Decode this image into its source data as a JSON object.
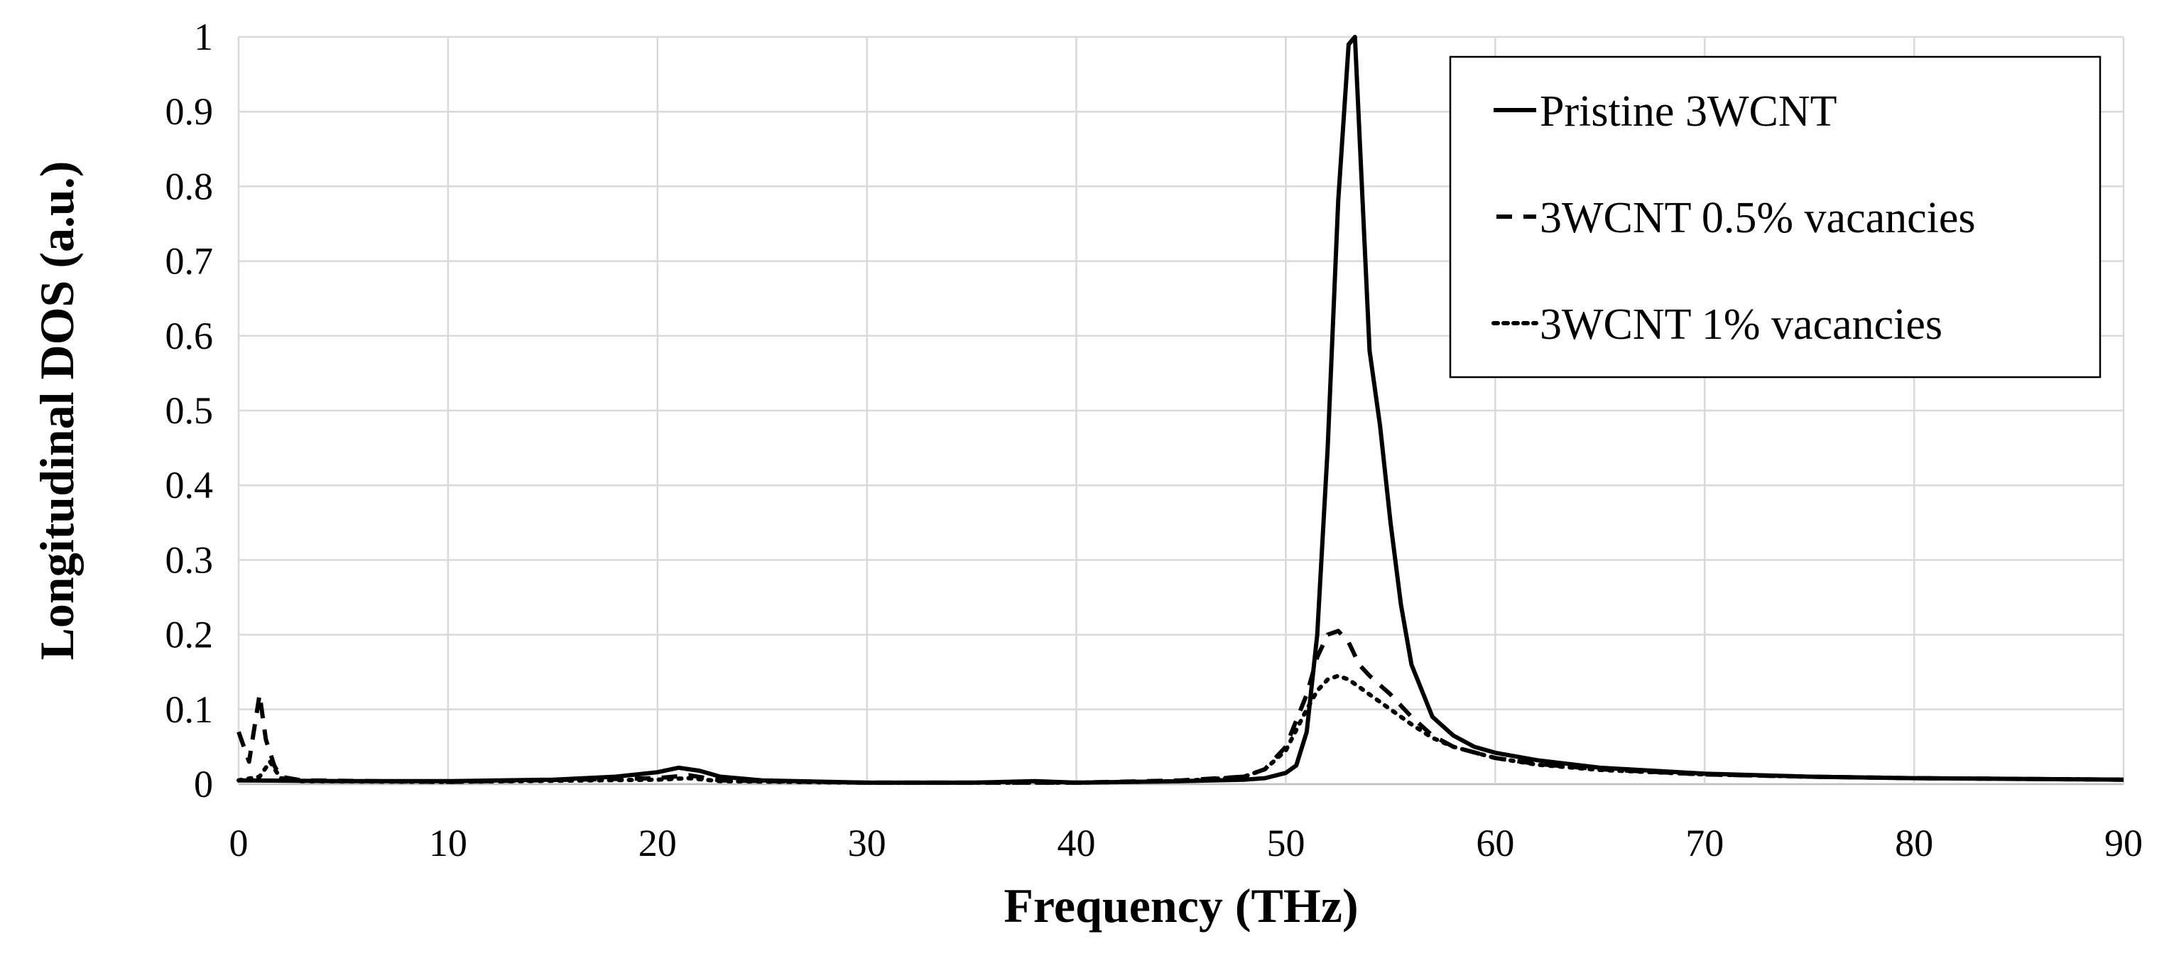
{
  "chart_data": {
    "type": "line",
    "title": "",
    "xlabel": "Frequency (THz)",
    "ylabel": "Longitudinal DOS (a.u.)",
    "xlim": [
      0,
      90
    ],
    "ylim": [
      0,
      1
    ],
    "xticks": [
      "0",
      "10",
      "20",
      "30",
      "40",
      "50",
      "60",
      "70",
      "80",
      "90"
    ],
    "yticks": [
      "0",
      "0.1",
      "0.2",
      "0.3",
      "0.4",
      "0.5",
      "0.6",
      "0.7",
      "0.8",
      "0.9",
      "1"
    ],
    "grid": true,
    "legend_position": "top-right",
    "series": [
      {
        "name": "Pristine 3WCNT",
        "style": "solid",
        "color": "#000000",
        "points": [
          [
            0,
            0.005
          ],
          [
            5,
            0.004
          ],
          [
            10,
            0.004
          ],
          [
            15,
            0.006
          ],
          [
            18,
            0.01
          ],
          [
            20,
            0.016
          ],
          [
            21,
            0.022
          ],
          [
            22,
            0.018
          ],
          [
            23,
            0.01
          ],
          [
            25,
            0.005
          ],
          [
            30,
            0.002
          ],
          [
            35,
            0.002
          ],
          [
            38,
            0.004
          ],
          [
            40,
            0.002
          ],
          [
            45,
            0.004
          ],
          [
            48,
            0.006
          ],
          [
            49,
            0.008
          ],
          [
            50,
            0.015
          ],
          [
            50.5,
            0.025
          ],
          [
            51,
            0.07
          ],
          [
            51.5,
            0.2
          ],
          [
            52,
            0.45
          ],
          [
            52.5,
            0.78
          ],
          [
            53,
            0.99
          ],
          [
            53.3,
            1.0
          ],
          [
            53.6,
            0.82
          ],
          [
            54,
            0.58
          ],
          [
            54.5,
            0.48
          ],
          [
            55,
            0.35
          ],
          [
            55.5,
            0.24
          ],
          [
            56,
            0.16
          ],
          [
            57,
            0.09
          ],
          [
            58,
            0.065
          ],
          [
            59,
            0.05
          ],
          [
            60,
            0.042
          ],
          [
            62,
            0.032
          ],
          [
            65,
            0.022
          ],
          [
            70,
            0.014
          ],
          [
            75,
            0.01
          ],
          [
            80,
            0.008
          ],
          [
            85,
            0.007
          ],
          [
            90,
            0.006
          ]
        ]
      },
      {
        "name": "3WCNT 0.5% vacancies",
        "style": "dashed",
        "color": "#000000",
        "points": [
          [
            0,
            0.07
          ],
          [
            0.5,
            0.03
          ],
          [
            1,
            0.12
          ],
          [
            1.3,
            0.06
          ],
          [
            1.7,
            0.025
          ],
          [
            2,
            0.01
          ],
          [
            3,
            0.005
          ],
          [
            10,
            0.003
          ],
          [
            20,
            0.008
          ],
          [
            21.5,
            0.012
          ],
          [
            23,
            0.005
          ],
          [
            30,
            0.002
          ],
          [
            40,
            0.002
          ],
          [
            45,
            0.005
          ],
          [
            48,
            0.01
          ],
          [
            49,
            0.02
          ],
          [
            50,
            0.05
          ],
          [
            51,
            0.12
          ],
          [
            51.5,
            0.17
          ],
          [
            52,
            0.2
          ],
          [
            52.5,
            0.205
          ],
          [
            53,
            0.19
          ],
          [
            53.5,
            0.16
          ],
          [
            54,
            0.145
          ],
          [
            55,
            0.12
          ],
          [
            56,
            0.09
          ],
          [
            57,
            0.065
          ],
          [
            58,
            0.05
          ],
          [
            60,
            0.035
          ],
          [
            62,
            0.027
          ],
          [
            65,
            0.02
          ],
          [
            70,
            0.013
          ],
          [
            75,
            0.01
          ],
          [
            80,
            0.008
          ],
          [
            90,
            0.006
          ]
        ]
      },
      {
        "name": "3WCNT 1% vacancies",
        "style": "dotted",
        "color": "#000000",
        "points": [
          [
            0,
            0.005
          ],
          [
            1,
            0.01
          ],
          [
            1.5,
            0.03
          ],
          [
            2,
            0.008
          ],
          [
            3,
            0.004
          ],
          [
            10,
            0.003
          ],
          [
            20,
            0.006
          ],
          [
            21.5,
            0.008
          ],
          [
            23,
            0.004
          ],
          [
            30,
            0.002
          ],
          [
            40,
            0.002
          ],
          [
            45,
            0.004
          ],
          [
            48,
            0.01
          ],
          [
            49,
            0.02
          ],
          [
            50,
            0.045
          ],
          [
            51,
            0.1
          ],
          [
            51.5,
            0.125
          ],
          [
            52,
            0.14
          ],
          [
            52.5,
            0.145
          ],
          [
            53,
            0.14
          ],
          [
            53.5,
            0.13
          ],
          [
            54,
            0.12
          ],
          [
            55,
            0.1
          ],
          [
            56,
            0.08
          ],
          [
            57,
            0.062
          ],
          [
            58,
            0.05
          ],
          [
            60,
            0.035
          ],
          [
            62,
            0.026
          ],
          [
            65,
            0.019
          ],
          [
            70,
            0.013
          ],
          [
            75,
            0.01
          ],
          [
            80,
            0.008
          ],
          [
            90,
            0.006
          ]
        ]
      }
    ]
  }
}
